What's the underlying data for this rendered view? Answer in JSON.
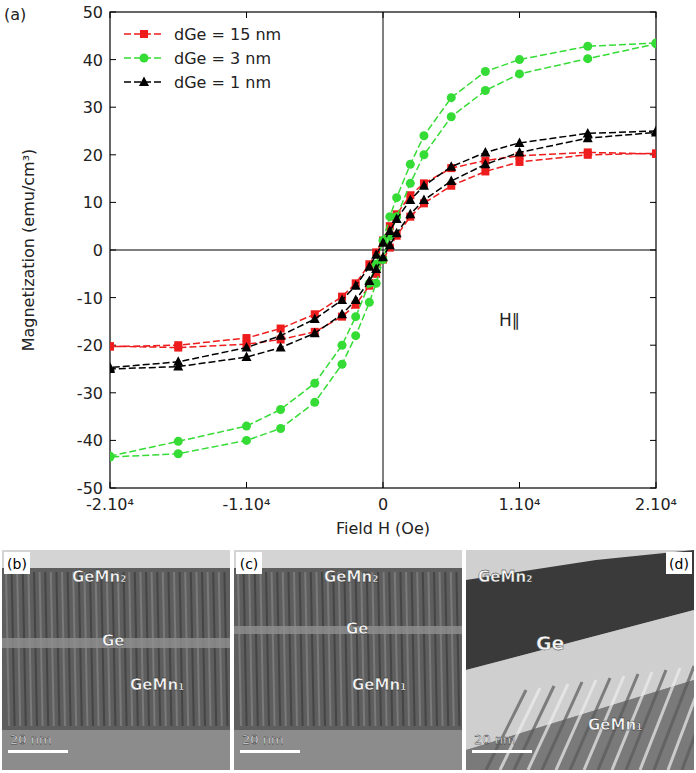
{
  "chart_data": {
    "type": "line",
    "annotations": [
      "(a)",
      "H∥"
    ],
    "x_label": "Field H (Oe)",
    "y_label": "Magnetization (emu/cm³)",
    "x": [
      20000,
      15000,
      10000,
      7500,
      5000,
      3000,
      2000,
      1000,
      500,
      0,
      -500,
      -1000,
      -2000,
      -3000,
      -5000,
      -7500,
      -10000,
      -15000,
      -20000,
      -20000,
      -15000,
      -10000,
      -7500,
      -5000,
      -3000,
      -2000,
      -1000,
      -500,
      0,
      500,
      1000,
      2000,
      3000,
      5000,
      7500,
      10000,
      15000,
      20000
    ],
    "series": [
      {
        "name": "dGe = 15 nm",
        "color": "#ee1c1c",
        "marker": "square",
        "line_style": "dashed",
        "values": [
          20.2,
          20.5,
          19.8,
          18.8,
          17.2,
          14,
          11.5,
          7.5,
          5,
          2,
          -0.5,
          -3,
          -7,
          -9.8,
          -13.5,
          -16.5,
          -18.5,
          -20,
          -20.3,
          -20.2,
          -20.5,
          -19.8,
          -18.8,
          -17.2,
          -14,
          -11.5,
          -7.5,
          -5,
          -2,
          0.5,
          3,
          7,
          9.8,
          13.5,
          16.5,
          18.5,
          20,
          20.3
        ]
      },
      {
        "name": "dGe = 3 nm",
        "color": "#35dc35",
        "marker": "circle",
        "line_style": "dashed",
        "values": [
          43.5,
          42.8,
          40,
          37.5,
          32,
          24,
          18,
          11,
          7,
          2,
          -3,
          -7,
          -14,
          -20,
          -28,
          -33.5,
          -37,
          -40.2,
          -43.3,
          -43.5,
          -42.8,
          -40,
          -37.5,
          -32,
          -24,
          -18,
          -11,
          -7,
          -2,
          3,
          7,
          14,
          20,
          28,
          33.5,
          37,
          40.2,
          43.3
        ]
      },
      {
        "name": "dGe = 1 nm",
        "color": "#000000",
        "marker": "triangle",
        "line_style": "dashed",
        "values": [
          25,
          24.5,
          22.5,
          20.5,
          17.5,
          13.5,
          10.5,
          6.5,
          4,
          1.5,
          -1,
          -3.5,
          -7.5,
          -10.5,
          -14.5,
          -18,
          -20.5,
          -23.5,
          -24.7,
          -25,
          -24.5,
          -22.5,
          -20.5,
          -17.5,
          -13.5,
          -10.5,
          -6.5,
          -4,
          -1.5,
          1,
          3.5,
          7.5,
          10.5,
          14.5,
          18,
          20.5,
          23.5,
          24.7
        ]
      }
    ],
    "xlim": [
      -20000,
      20000
    ],
    "xticks": [
      {
        "value": -20000,
        "label": "-2.10⁴"
      },
      {
        "value": -10000,
        "label": "-1.10⁴"
      },
      0,
      {
        "value": 10000,
        "label": "1.10⁴"
      },
      {
        "value": 20000,
        "label": "2.10⁴"
      }
    ],
    "ylim": [
      -50,
      50
    ],
    "yticks": [
      -50,
      -40,
      -30,
      -20,
      -10,
      0,
      10,
      20,
      30,
      40,
      50
    ],
    "legend": "upper left",
    "grid": false
  },
  "images": [
    {
      "panel": "(b)",
      "labels": [
        "GeMn₂",
        "Ge",
        "GeMn₁"
      ],
      "scale_bar": "20 nm"
    },
    {
      "panel": "(c)",
      "labels": [
        "GeMn₂",
        "Ge",
        "GeMn₁"
      ],
      "scale_bar": "20 nm"
    },
    {
      "panel": "(d)",
      "labels": [
        "GeMn₂",
        "Ge",
        "GeMn₁"
      ],
      "scale_bar": "20 nm"
    }
  ]
}
